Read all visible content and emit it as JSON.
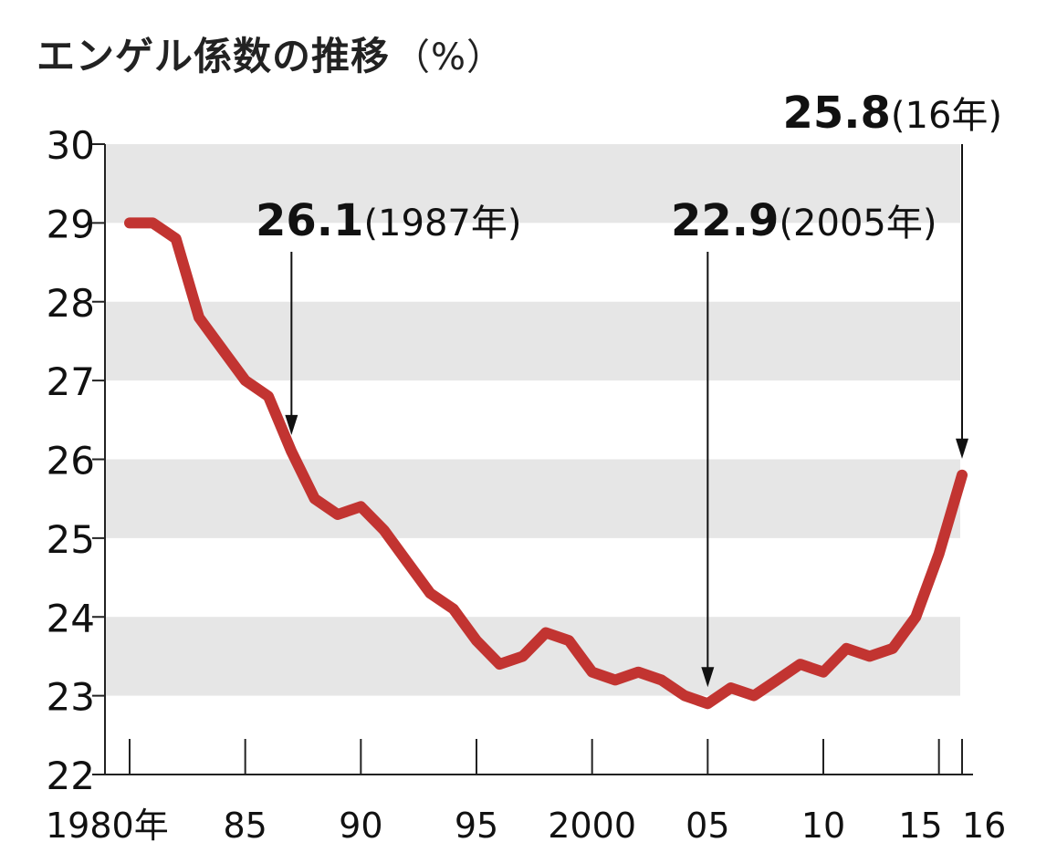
{
  "title": "エンゲル係数の推移",
  "title_unit": "（%）",
  "colors": {
    "line": "#c23431",
    "band": "#e6e6e6",
    "axis": "#222222"
  },
  "chart_data": {
    "type": "line",
    "title": "エンゲル係数の推移",
    "ylabel": "%",
    "ylim": [
      22,
      30
    ],
    "yticks": [
      22,
      23,
      24,
      25,
      26,
      27,
      28,
      29,
      30
    ],
    "xlim": [
      1980,
      2016
    ],
    "xticks": [
      {
        "x": 1980,
        "label": "1980年"
      },
      {
        "x": 1985,
        "label": "85"
      },
      {
        "x": 1990,
        "label": "90"
      },
      {
        "x": 1995,
        "label": "95"
      },
      {
        "x": 2000,
        "label": "2000"
      },
      {
        "x": 2005,
        "label": "05"
      },
      {
        "x": 2010,
        "label": "10"
      },
      {
        "x": 2015,
        "label": "15"
      },
      {
        "x": 2016,
        "label": "16"
      }
    ],
    "series": [
      {
        "x": [
          1980,
          1981,
          1982,
          1983,
          1984,
          1985,
          1986,
          1987,
          1988,
          1989,
          1990,
          1991,
          1992,
          1993,
          1994,
          1995,
          1996,
          1997,
          1998,
          1999,
          2000,
          2001,
          2002,
          2003,
          2004,
          2005,
          2006,
          2007,
          2008,
          2009,
          2010,
          2011,
          2012,
          2013,
          2014,
          2015,
          2016
        ],
        "values": [
          29.0,
          29.0,
          28.8,
          27.8,
          27.4,
          27.0,
          26.8,
          26.1,
          25.5,
          25.3,
          25.4,
          25.1,
          24.7,
          24.3,
          24.1,
          23.7,
          23.4,
          23.5,
          23.8,
          23.7,
          23.3,
          23.2,
          23.3,
          23.2,
          23.0,
          22.9,
          23.1,
          23.0,
          23.2,
          23.4,
          23.3,
          23.6,
          23.5,
          23.6,
          24.0,
          24.8,
          25.8
        ]
      }
    ],
    "annotations": [
      {
        "x": 1987,
        "y": 26.1,
        "value": "26.1",
        "note": "(1987年)"
      },
      {
        "x": 2005,
        "y": 22.9,
        "value": "22.9",
        "note": "(2005年)"
      },
      {
        "x": 2016,
        "y": 25.8,
        "value": "25.8",
        "note": "(16年)"
      }
    ],
    "grid": "alternating horizontal bands"
  }
}
